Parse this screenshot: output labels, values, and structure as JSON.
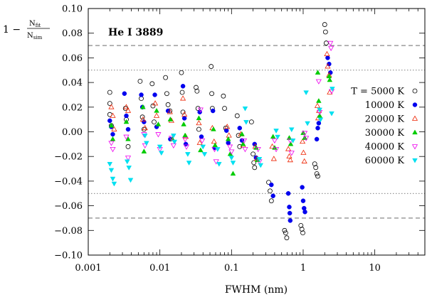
{
  "chart_data": {
    "type": "scatter",
    "title": "He I 3889",
    "xlabel": "FWHM (nm)",
    "ylabel": {
      "prefix": "1 −",
      "numerator": "N",
      "numerator_sub": "fit",
      "denominator": "N",
      "denominator_sub": "sim"
    },
    "xscale": "log",
    "xlim": [
      0.001,
      50
    ],
    "ylim": [
      -0.1,
      0.1
    ],
    "x_ticks": [
      0.001,
      0.01,
      0.1,
      1,
      10
    ],
    "x_tick_labels": [
      "0.001",
      "0.01",
      "0.1",
      "1",
      "10"
    ],
    "y_ticks": [
      -0.1,
      -0.08,
      -0.06,
      -0.04,
      -0.02,
      0,
      0.02,
      0.04,
      0.06,
      0.08,
      0.1
    ],
    "y_tick_labels": [
      "−0.10",
      "−0.08",
      "−0.06",
      "−0.04",
      "−0.02",
      "0.00",
      "0.02",
      "0.04",
      "0.06",
      "0.08",
      "0.10"
    ],
    "reference_lines": [
      {
        "y": 0.07,
        "style": "dashed"
      },
      {
        "y": 0.05,
        "style": "dotted"
      },
      {
        "y": -0.05,
        "style": "dotted"
      },
      {
        "y": -0.07,
        "style": "dashed"
      }
    ],
    "legend_title": "T = 5000 K",
    "legend_position": "right",
    "series": [
      {
        "name": "T = 5000 K",
        "marker": "circle-open",
        "color": "#000000",
        "points": [
          [
            0.002,
            0.032
          ],
          [
            0.002,
            0.023
          ],
          [
            0.002,
            0.014
          ],
          [
            0.0021,
            0.005
          ],
          [
            0.0033,
            0.019
          ],
          [
            0.0034,
            0.01
          ],
          [
            0.0036,
            -0.012
          ],
          [
            0.0053,
            0.041
          ],
          [
            0.0055,
            0.027
          ],
          [
            0.0057,
            0.012
          ],
          [
            0.006,
            0.002
          ],
          [
            0.0078,
            0.039
          ],
          [
            0.008,
            0.021
          ],
          [
            0.0083,
            0.008
          ],
          [
            0.012,
            0.044
          ],
          [
            0.0125,
            0.031
          ],
          [
            0.013,
            0.022
          ],
          [
            0.0138,
            0.017
          ],
          [
            0.02,
            0.048
          ],
          [
            0.0205,
            0.032
          ],
          [
            0.021,
            0.016
          ],
          [
            0.032,
            0.036
          ],
          [
            0.033,
            0.033
          ],
          [
            0.034,
            0.019
          ],
          [
            0.035,
            0.002
          ],
          [
            0.052,
            0.053
          ],
          [
            0.053,
            0.031
          ],
          [
            0.054,
            0.019
          ],
          [
            0.077,
            0.029
          ],
          [
            0.08,
            0.019
          ],
          [
            0.083,
            0.003
          ],
          [
            0.12,
            0.013
          ],
          [
            0.125,
            -0.003
          ],
          [
            0.13,
            -0.012
          ],
          [
            0.19,
            0.008
          ],
          [
            0.2,
            -0.018
          ],
          [
            0.205,
            -0.025
          ],
          [
            0.21,
            -0.029
          ],
          [
            0.33,
            -0.041
          ],
          [
            0.345,
            -0.048
          ],
          [
            0.36,
            -0.056
          ],
          [
            0.55,
            -0.08
          ],
          [
            0.57,
            -0.082
          ],
          [
            0.59,
            -0.086
          ],
          [
            0.93,
            -0.076
          ],
          [
            0.96,
            -0.079
          ],
          [
            0.99,
            -0.082
          ],
          [
            1.45,
            -0.026
          ],
          [
            1.5,
            -0.029
          ],
          [
            1.55,
            -0.034
          ],
          [
            1.6,
            -0.036
          ],
          [
            2.0,
            0.087
          ],
          [
            2.05,
            0.081
          ],
          [
            2.1,
            0.072
          ]
        ]
      },
      {
        "name": "10000 K",
        "marker": "circle-filled",
        "color": "#0000ee",
        "points": [
          [
            0.002,
            0.009
          ],
          [
            0.0021,
            0.004
          ],
          [
            0.0022,
            -0.002
          ],
          [
            0.0032,
            0.031
          ],
          [
            0.0034,
            0.013
          ],
          [
            0.0036,
            0.002
          ],
          [
            0.0055,
            0.03
          ],
          [
            0.0057,
            0.02
          ],
          [
            0.006,
            0.008
          ],
          [
            0.0085,
            0.03
          ],
          [
            0.009,
            0.004
          ],
          [
            0.013,
            0.017
          ],
          [
            0.014,
            -0.006
          ],
          [
            0.021,
            0.037
          ],
          [
            0.022,
            0.011
          ],
          [
            0.023,
            -0.01
          ],
          [
            0.036,
            0.016
          ],
          [
            0.038,
            -0.004
          ],
          [
            0.055,
            0.017
          ],
          [
            0.058,
            -0.013
          ],
          [
            0.085,
            0.001
          ],
          [
            0.09,
            -0.009
          ],
          [
            0.13,
            0.003
          ],
          [
            0.14,
            -0.007
          ],
          [
            0.21,
            -0.01
          ],
          [
            0.22,
            -0.021
          ],
          [
            0.36,
            -0.043
          ],
          [
            0.38,
            -0.052
          ],
          [
            0.62,
            -0.05
          ],
          [
            0.64,
            -0.061
          ],
          [
            0.65,
            -0.066
          ],
          [
            0.66,
            -0.072
          ],
          [
            0.97,
            -0.045
          ],
          [
            1.0,
            -0.056
          ],
          [
            1.03,
            -0.062
          ],
          [
            1.06,
            -0.065
          ],
          [
            1.55,
            -0.006
          ],
          [
            1.6,
            0.003
          ],
          [
            1.65,
            0.007
          ],
          [
            2.2,
            0.06
          ],
          [
            2.3,
            0.055
          ],
          [
            2.4,
            0.048
          ]
        ]
      },
      {
        "name": "20000 K",
        "marker": "triangle-up-open",
        "color": "#ee2200",
        "points": [
          [
            0.0021,
            0.02
          ],
          [
            0.0022,
            0.013
          ],
          [
            0.0023,
            0.002
          ],
          [
            0.0034,
            0.02
          ],
          [
            0.0036,
            0.017
          ],
          [
            0.0058,
            0.01
          ],
          [
            0.0062,
            0.003
          ],
          [
            0.0086,
            0.023
          ],
          [
            0.009,
            0.013
          ],
          [
            0.0138,
            0.016
          ],
          [
            0.0145,
            0.009
          ],
          [
            0.021,
            0.027
          ],
          [
            0.022,
            0.014
          ],
          [
            0.023,
            -0.004
          ],
          [
            0.035,
            0.007
          ],
          [
            0.036,
            -0.009
          ],
          [
            0.054,
            0.003
          ],
          [
            0.057,
            -0.008
          ],
          [
            0.087,
            0.004
          ],
          [
            0.092,
            -0.003
          ],
          [
            0.135,
            -0.002
          ],
          [
            0.145,
            -0.011
          ],
          [
            0.215,
            -0.012
          ],
          [
            0.225,
            -0.022
          ],
          [
            0.37,
            -0.012
          ],
          [
            0.39,
            -0.022
          ],
          [
            0.62,
            -0.014
          ],
          [
            0.64,
            -0.02
          ],
          [
            0.66,
            -0.023
          ],
          [
            0.98,
            -0.008
          ],
          [
            1.01,
            -0.017
          ],
          [
            1.04,
            -0.024
          ],
          [
            1.58,
            0.021
          ],
          [
            1.62,
            0.011
          ],
          [
            1.66,
            0.017
          ],
          [
            2.15,
            0.063
          ],
          [
            2.2,
            0.053
          ],
          [
            2.3,
            0.046
          ],
          [
            2.35,
            0.032
          ]
        ]
      },
      {
        "name": "30000 K",
        "marker": "triangle-up-filled",
        "color": "#00cc00",
        "points": [
          [
            0.0021,
            0.005
          ],
          [
            0.0022,
            -0.006
          ],
          [
            0.0034,
            0.008
          ],
          [
            0.0036,
            -0.006
          ],
          [
            0.0058,
            0.02
          ],
          [
            0.006,
            -0.016
          ],
          [
            0.009,
            0.017
          ],
          [
            0.0095,
            0.006
          ],
          [
            0.014,
            0.01
          ],
          [
            0.015,
            -0.006
          ],
          [
            0.0215,
            0.006
          ],
          [
            0.0225,
            -0.003
          ],
          [
            0.035,
            0.011
          ],
          [
            0.037,
            -0.015
          ],
          [
            0.056,
            0.002
          ],
          [
            0.059,
            -0.011
          ],
          [
            0.09,
            -0.006
          ],
          [
            0.096,
            -0.018
          ],
          [
            0.105,
            -0.034
          ],
          [
            0.14,
            -0.002
          ],
          [
            0.145,
            -0.01
          ],
          [
            0.22,
            -0.013
          ],
          [
            0.23,
            -0.023
          ],
          [
            0.38,
            -0.004
          ],
          [
            0.4,
            -0.013
          ],
          [
            0.64,
            -0.005
          ],
          [
            0.67,
            -0.01
          ],
          [
            1.0,
            -0.001
          ],
          [
            1.05,
            -0.005
          ],
          [
            1.6,
            0.048
          ],
          [
            1.65,
            0.025
          ],
          [
            1.7,
            0.013
          ],
          [
            2.3,
            0.045
          ],
          [
            2.35,
            0.042
          ]
        ]
      },
      {
        "name": "40000 K",
        "marker": "triangle-down-open",
        "color": "#ee00ee",
        "points": [
          [
            0.0021,
            -0.009
          ],
          [
            0.0022,
            -0.014
          ],
          [
            0.0034,
            -0.004
          ],
          [
            0.0036,
            -0.021
          ],
          [
            0.006,
            -0.002
          ],
          [
            0.0062,
            -0.011
          ],
          [
            0.0095,
            -0.002
          ],
          [
            0.01,
            -0.014
          ],
          [
            0.0145,
            -0.005
          ],
          [
            0.0155,
            -0.011
          ],
          [
            0.0225,
            -0.006
          ],
          [
            0.0235,
            -0.012
          ],
          [
            0.037,
            0.018
          ],
          [
            0.039,
            -0.007
          ],
          [
            0.058,
            -0.014
          ],
          [
            0.061,
            -0.024
          ],
          [
            0.095,
            -0.012
          ],
          [
            0.1,
            -0.016
          ],
          [
            0.15,
            -0.007
          ],
          [
            0.155,
            -0.014
          ],
          [
            0.235,
            -0.014
          ],
          [
            0.245,
            -0.024
          ],
          [
            0.4,
            -0.007
          ],
          [
            0.42,
            -0.014
          ],
          [
            0.66,
            -0.007
          ],
          [
            0.69,
            -0.017
          ],
          [
            1.05,
            -0.001
          ],
          [
            1.1,
            -0.005
          ],
          [
            1.65,
            0.041
          ],
          [
            1.7,
            0.016
          ],
          [
            2.4,
            0.072
          ],
          [
            2.45,
            0.068
          ],
          [
            2.5,
            0.033
          ]
        ]
      },
      {
        "name": "60000 K",
        "marker": "triangle-down-filled",
        "color": "#00e0f0",
        "points": [
          [
            0.002,
            -0.026
          ],
          [
            0.0021,
            -0.031
          ],
          [
            0.0022,
            -0.038
          ],
          [
            0.0023,
            -0.042
          ],
          [
            0.0035,
            -0.024
          ],
          [
            0.0037,
            -0.029
          ],
          [
            0.0039,
            -0.039
          ],
          [
            0.0062,
            -0.003
          ],
          [
            0.0065,
            -0.009
          ],
          [
            0.01,
            -0.012
          ],
          [
            0.0105,
            -0.017
          ],
          [
            0.0155,
            -0.003
          ],
          [
            0.016,
            -0.008
          ],
          [
            0.0245,
            -0.018
          ],
          [
            0.0255,
            -0.025
          ],
          [
            0.04,
            -0.012
          ],
          [
            0.042,
            -0.018
          ],
          [
            0.064,
            -0.014
          ],
          [
            0.067,
            -0.026
          ],
          [
            0.1,
            -0.021
          ],
          [
            0.105,
            -0.025
          ],
          [
            0.155,
            0.019
          ],
          [
            0.16,
            0.008
          ],
          [
            0.245,
            -0.022
          ],
          [
            0.255,
            -0.027
          ],
          [
            0.42,
            0.001
          ],
          [
            0.44,
            -0.004
          ],
          [
            0.69,
            0.002
          ],
          [
            0.72,
            -0.007
          ],
          [
            1.1,
            0.032
          ],
          [
            1.15,
            0.007
          ],
          [
            1.7,
            0.018
          ],
          [
            1.75,
            0.01
          ],
          [
            2.5,
            0.015
          ],
          [
            2.55,
            0.035
          ]
        ]
      }
    ]
  }
}
